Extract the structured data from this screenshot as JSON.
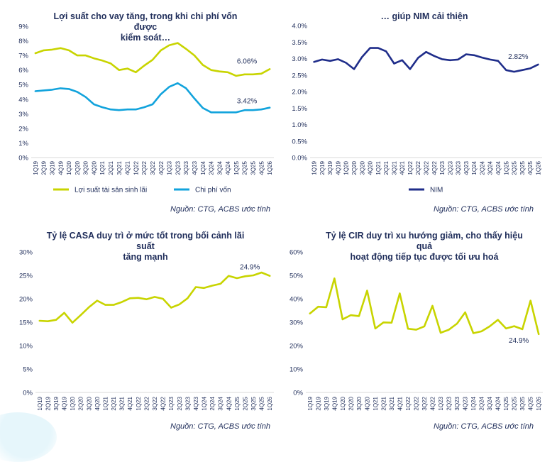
{
  "colors": {
    "yellow": "#c8d400",
    "lightblue": "#12a3dc",
    "navy": "#1f2d8a",
    "text": "#1f2d5a",
    "axis": "#d9d9d9"
  },
  "quarters": [
    "1Q19",
    "2Q19",
    "3Q19",
    "4Q19",
    "1Q20",
    "2Q20",
    "3Q20",
    "4Q20",
    "1Q21",
    "2Q21",
    "3Q21",
    "4Q21",
    "1Q22",
    "2Q22",
    "3Q22",
    "4Q22",
    "1Q23",
    "2Q23",
    "3Q23",
    "4Q23",
    "1Q24",
    "2Q24",
    "3Q24",
    "4Q24",
    "1Q25",
    "2Q25",
    "3Q25",
    "4Q25",
    "1Q26"
  ],
  "source_text": "Nguồn: CTG, ACBS ước tính",
  "chart_data": [
    {
      "id": "yield",
      "type": "line",
      "title": "Lợi suất cho vay tăng, trong khi chi phí vốn được kiểm soát…",
      "title_lines": [
        "Lợi suất cho vay tăng, trong khi chi phí vốn được",
        "kiểm soát…"
      ],
      "ylim": [
        0,
        9
      ],
      "ystep": 1,
      "ydecimals": 0,
      "yunit": "%",
      "categories_ref": "quarters",
      "series": [
        {
          "name": "Lợi suất tài sản sinh lãi",
          "color": "#c8d400",
          "values": [
            7.15,
            7.35,
            7.4,
            7.5,
            7.35,
            7.0,
            7.0,
            6.8,
            6.65,
            6.45,
            6.0,
            6.1,
            5.85,
            6.3,
            6.7,
            7.35,
            7.7,
            7.85,
            7.45,
            7.0,
            6.35,
            6.0,
            5.9,
            5.85,
            5.6,
            5.7,
            5.7,
            5.75,
            6.06
          ],
          "end_label": "6.06%"
        },
        {
          "name": "Chi phí vốn",
          "color": "#12a3dc",
          "values": [
            4.55,
            4.6,
            4.65,
            4.75,
            4.7,
            4.5,
            4.15,
            3.65,
            3.45,
            3.3,
            3.25,
            3.3,
            3.3,
            3.45,
            3.65,
            4.35,
            4.85,
            5.1,
            4.75,
            4.05,
            3.4,
            3.1,
            3.1,
            3.1,
            3.1,
            3.25,
            3.25,
            3.3,
            3.42
          ],
          "end_label": "3.42%"
        }
      ],
      "legend": "bottom"
    },
    {
      "id": "nim",
      "type": "line",
      "title": "… giúp NIM cải thiện",
      "title_lines": [
        "… giúp NIM cải thiện"
      ],
      "ylim": [
        0,
        4
      ],
      "ystep": 0.5,
      "ydecimals": 1,
      "yunit": "%",
      "categories_ref": "quarters",
      "series": [
        {
          "name": "NIM",
          "color": "#1f2d8a",
          "values": [
            2.9,
            2.97,
            2.93,
            2.98,
            2.87,
            2.68,
            3.05,
            3.32,
            3.32,
            3.22,
            2.85,
            2.95,
            2.68,
            3.02,
            3.2,
            3.08,
            2.98,
            2.95,
            2.97,
            3.13,
            3.1,
            3.03,
            2.97,
            2.93,
            2.65,
            2.6,
            2.65,
            2.7,
            2.82
          ],
          "end_label": "2.82%"
        }
      ],
      "legend": "bottom"
    },
    {
      "id": "casa",
      "type": "line",
      "title": "Tỷ lệ CASA duy trì ở mức tốt trong bối cảnh lãi suất tăng mạnh",
      "title_lines": [
        "Tỷ lệ CASA duy trì ở mức tốt trong bối cảnh lãi suất",
        "tăng mạnh"
      ],
      "ylim": [
        0,
        30
      ],
      "ystep": 5,
      "ydecimals": 0,
      "yunit": "%",
      "categories_ref": "quarters",
      "series": [
        {
          "name": "",
          "color": "#c8d400",
          "values": [
            15.3,
            15.2,
            15.5,
            17.0,
            14.9,
            16.5,
            18.2,
            19.6,
            18.7,
            18.7,
            19.3,
            20.1,
            20.2,
            19.9,
            20.4,
            20.0,
            18.1,
            18.8,
            20.1,
            22.5,
            22.3,
            22.8,
            23.2,
            24.9,
            24.4,
            24.8,
            25.0,
            25.6,
            24.9
          ],
          "end_label": "24.9%"
        }
      ],
      "legend": "none"
    },
    {
      "id": "cir",
      "type": "line",
      "title": "Tỷ lệ CIR duy trì xu hướng giảm, cho thấy hiệu quả hoạt động tiếp tục được tối ưu hoá",
      "title_lines": [
        "Tỷ lệ CIR duy trì xu hướng giảm, cho thấy hiệu quả",
        "hoạt động tiếp tục được tối ưu hoá"
      ],
      "ylim": [
        0,
        60
      ],
      "ystep": 10,
      "ydecimals": 0,
      "yunit": "%",
      "categories_ref": "quarters",
      "series": [
        {
          "name": "",
          "color": "#c8d400",
          "values": [
            33.7,
            36.6,
            36.4,
            48.7,
            31.2,
            33.0,
            32.6,
            43.5,
            27.3,
            29.9,
            29.8,
            42.3,
            27.2,
            26.8,
            28.2,
            37.0,
            25.5,
            26.8,
            29.4,
            34.2,
            25.3,
            26.1,
            28.2,
            31.0,
            27.3,
            28.3,
            27.0,
            39.2,
            24.9
          ],
          "end_label": "24.9%"
        }
      ],
      "legend": "none"
    }
  ]
}
